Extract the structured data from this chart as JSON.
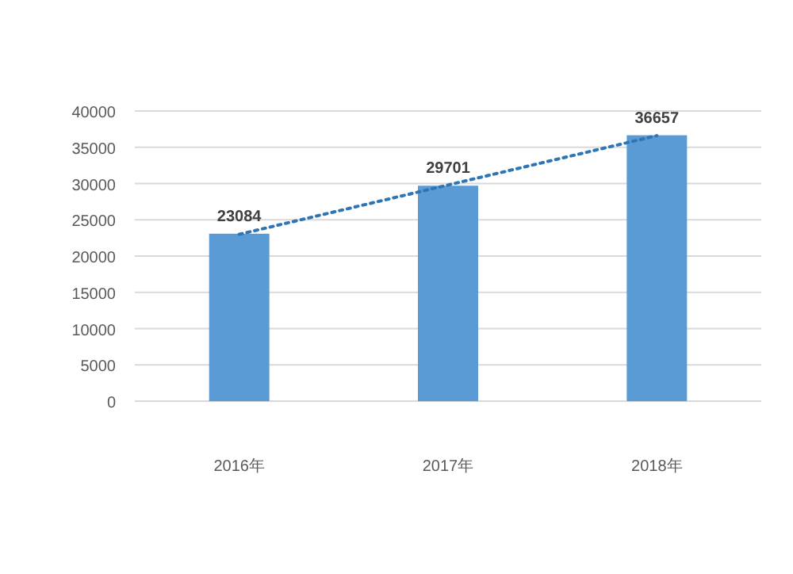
{
  "chart_data": {
    "type": "bar",
    "categories": [
      "2016年",
      "2017年",
      "2018年"
    ],
    "series": [
      {
        "color": "#5b9bd5",
        "values": [
          23084,
          29701,
          36657
        ],
        "value_labels": [
          "23084",
          "29701",
          "36657"
        ]
      },
      {
        "type": "line",
        "color": "#2e75b6",
        "line_style": "dotted",
        "values": [
          23000,
          29800,
          36600
        ]
      }
    ],
    "ylim": [
      0,
      40000
    ],
    "yticks": [
      0,
      5000,
      10000,
      15000,
      20000,
      25000,
      30000,
      35000,
      40000
    ],
    "grid": "y"
  }
}
